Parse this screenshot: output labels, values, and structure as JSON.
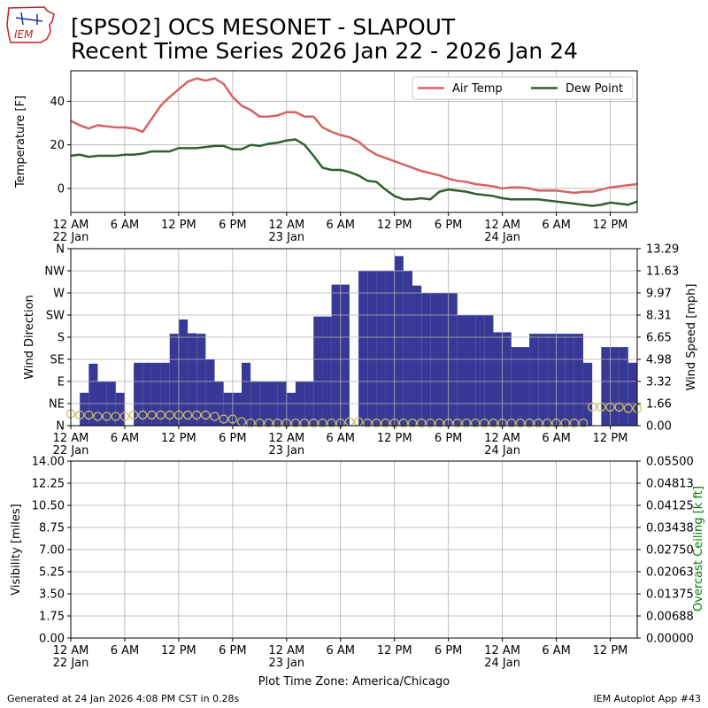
{
  "title": {
    "line1": "[SPSO2] OCS MESONET - SLAPOUT",
    "line2": "Recent Time Series 2026 Jan 22 - 2026 Jan 24"
  },
  "logo": {
    "text": "IEM"
  },
  "footer": {
    "left": "Generated at 24 Jan 2026 4:08 PM CST in 0.28s",
    "right": "IEM Autoplot App #43"
  },
  "timezone_label": "Plot Time Zone: America/Chicago",
  "colors": {
    "air_temp": "#d76262",
    "dew_point": "#2f5f30",
    "wind_dir_bar": "#383896",
    "wind_speed_marker": "#c8c06a",
    "ceiling_axis": "#008000",
    "grid": "#b0b0b0"
  },
  "x_axis": {
    "hours_total": 63,
    "tick_hours": [
      0,
      6,
      12,
      18,
      24,
      30,
      36,
      42,
      48,
      54,
      60
    ],
    "tick_labels": [
      "12 AM",
      "6 AM",
      "12 PM",
      "6 PM",
      "12 AM",
      "6 AM",
      "12 PM",
      "6 PM",
      "12 AM",
      "6 AM",
      "12 PM"
    ],
    "date_labels": [
      {
        "hour": 0,
        "text": "22 Jan"
      },
      {
        "hour": 24,
        "text": "23 Jan"
      },
      {
        "hour": 48,
        "text": "24 Jan"
      }
    ]
  },
  "chart_data": [
    {
      "type": "line",
      "ylabel": "Temperature [F]",
      "ylim": [
        -11,
        54
      ],
      "yticks": [
        0,
        20,
        40
      ],
      "legend": {
        "placement": "top-right",
        "columns": 2
      },
      "x": [
        0,
        1,
        2,
        3,
        4,
        5,
        6,
        7,
        8,
        9,
        10,
        11,
        12,
        13,
        14,
        15,
        16,
        17,
        18,
        19,
        20,
        21,
        22,
        23,
        24,
        25,
        26,
        27,
        28,
        29,
        30,
        31,
        32,
        33,
        34,
        35,
        36,
        37,
        38,
        39,
        40,
        41,
        42,
        43,
        44,
        45,
        46,
        47,
        48,
        49,
        50,
        51,
        52,
        53,
        54,
        55,
        56,
        57,
        58,
        59,
        60,
        61,
        62,
        63
      ],
      "series": [
        {
          "name": "Air Temp",
          "color_key": "air_temp",
          "values": [
            31,
            29,
            27.5,
            29,
            28.5,
            28,
            28,
            27.5,
            26,
            32,
            38,
            42,
            45.5,
            49,
            50.5,
            49.5,
            50.5,
            48,
            42,
            38,
            36,
            33,
            33,
            33.5,
            35,
            35,
            33,
            33,
            28,
            26,
            24.5,
            23.5,
            21.5,
            18,
            15.5,
            14,
            12.5,
            11,
            9.5,
            8,
            7,
            6,
            4.5,
            3.5,
            3,
            2,
            1.5,
            1,
            0,
            0.5,
            0.5,
            0,
            -1,
            -1,
            -1,
            -1.5,
            -2,
            -1.5,
            -1.5,
            -0.5,
            0.5,
            1,
            1.5,
            2
          ]
        },
        {
          "name": "Dew Point",
          "color_key": "dew_point",
          "values": [
            15,
            15.5,
            14.5,
            15,
            15,
            15,
            15.5,
            15.5,
            16,
            17,
            17,
            17,
            18.5,
            18.5,
            18.5,
            19,
            19.5,
            19.5,
            18,
            18,
            20,
            19.5,
            20.5,
            21,
            22,
            22.5,
            20,
            15,
            9.5,
            8.5,
            8.5,
            7.5,
            6,
            3.5,
            3,
            -0.5,
            -3.5,
            -5,
            -5,
            -4.5,
            -5,
            -1.5,
            -0.5,
            -1,
            -1.5,
            -2.5,
            -3,
            -3.5,
            -4.5,
            -5,
            -5,
            -5,
            -5,
            -5.5,
            -6,
            -6.5,
            -7,
            -7.5,
            -8,
            -7.5,
            -6.5,
            -7,
            -7.5,
            -6
          ]
        }
      ]
    },
    {
      "type": "bar",
      "ylabel": "Wind Direction",
      "y2label": "Wind Speed [mph]",
      "ylim": [
        0,
        360
      ],
      "yticks": [
        0,
        45,
        90,
        135,
        180,
        225,
        270,
        315,
        360
      ],
      "ytick_labels": [
        "N",
        "NE",
        "E",
        "SE",
        "S",
        "SW",
        "W",
        "NW",
        "N"
      ],
      "y2lim": [
        0,
        13.29
      ],
      "y2ticks": [
        0.0,
        1.66,
        3.32,
        4.98,
        6.65,
        8.31,
        9.97,
        11.63,
        13.29
      ],
      "y2tick_labels": [
        "0.00",
        "1.66",
        "3.32",
        "4.98",
        "6.65",
        "8.31",
        "9.97",
        "11.63",
        "13.29"
      ],
      "x": [
        0,
        1,
        2,
        3,
        4,
        5,
        6,
        7,
        8,
        9,
        10,
        11,
        12,
        13,
        14,
        15,
        16,
        17,
        18,
        19,
        20,
        21,
        22,
        23,
        24,
        25,
        26,
        27,
        28,
        29,
        30,
        31,
        32,
        33,
        34,
        35,
        36,
        37,
        38,
        39,
        40,
        41,
        42,
        43,
        44,
        45,
        46,
        47,
        48,
        49,
        50,
        51,
        52,
        53,
        54,
        55,
        56,
        57,
        58,
        59,
        60,
        61,
        62,
        63
      ],
      "series": [
        {
          "name": "Wind Direction",
          "color_key": "wind_dir_bar",
          "values": [
            0,
            67,
            126,
            90,
            90,
            67,
            0,
            128,
            128,
            128,
            128,
            187,
            216,
            188,
            187,
            135,
            90,
            67,
            67,
            128,
            90,
            90,
            90,
            90,
            67,
            90,
            90,
            222,
            222,
            287,
            287,
            0,
            315,
            315,
            315,
            315,
            345,
            315,
            285,
            270,
            270,
            270,
            270,
            225,
            225,
            225,
            225,
            190,
            190,
            160,
            160,
            187,
            187,
            187,
            187,
            187,
            187,
            128,
            0,
            160,
            160,
            160,
            128,
            128
          ]
        },
        {
          "name": "Wind Speed",
          "color_key": "wind_speed_marker",
          "values": [
            0.9,
            0.8,
            0.8,
            0.7,
            0.7,
            0.7,
            0.7,
            0.8,
            0.8,
            0.8,
            0.8,
            0.8,
            0.8,
            0.8,
            0.8,
            0.8,
            0.7,
            0.5,
            0.5,
            0.3,
            0.2,
            0.2,
            0.2,
            0.2,
            0.2,
            0.2,
            0.2,
            0.2,
            0.2,
            0.2,
            0.2,
            0.3,
            0.3,
            0.2,
            0.2,
            0.2,
            0.2,
            0.2,
            0.2,
            0.2,
            0.2,
            0.2,
            0.2,
            0.2,
            0.2,
            0.2,
            0.2,
            0.2,
            0.2,
            0.2,
            0.2,
            0.2,
            0.2,
            0.2,
            0.2,
            0.2,
            0.2,
            0.2,
            1.4,
            1.4,
            1.4,
            1.4,
            1.3,
            1.3
          ]
        }
      ]
    },
    {
      "type": "line",
      "ylabel": "Visibility [miles]",
      "y2label": "Overcast Ceiling [k ft]",
      "ylim": [
        0,
        14
      ],
      "yticks": [
        0,
        1.75,
        3.5,
        5.25,
        7,
        8.75,
        10.5,
        12.25,
        14
      ],
      "ytick_labels": [
        "0.00",
        "1.75",
        "3.50",
        "5.25",
        "7.00",
        "8.75",
        "10.50",
        "12.25",
        "14.00"
      ],
      "y2lim": [
        0,
        0.055
      ],
      "y2ticks": [
        0,
        0.006875,
        0.01375,
        0.020625,
        0.0275,
        0.034375,
        0.04125,
        0.048125,
        0.055
      ],
      "y2tick_labels": [
        "0.00000",
        "0.00688",
        "0.01375",
        "0.02063",
        "0.02750",
        "0.03438",
        "0.04125",
        "0.04813",
        "0.05500"
      ],
      "series": []
    }
  ]
}
